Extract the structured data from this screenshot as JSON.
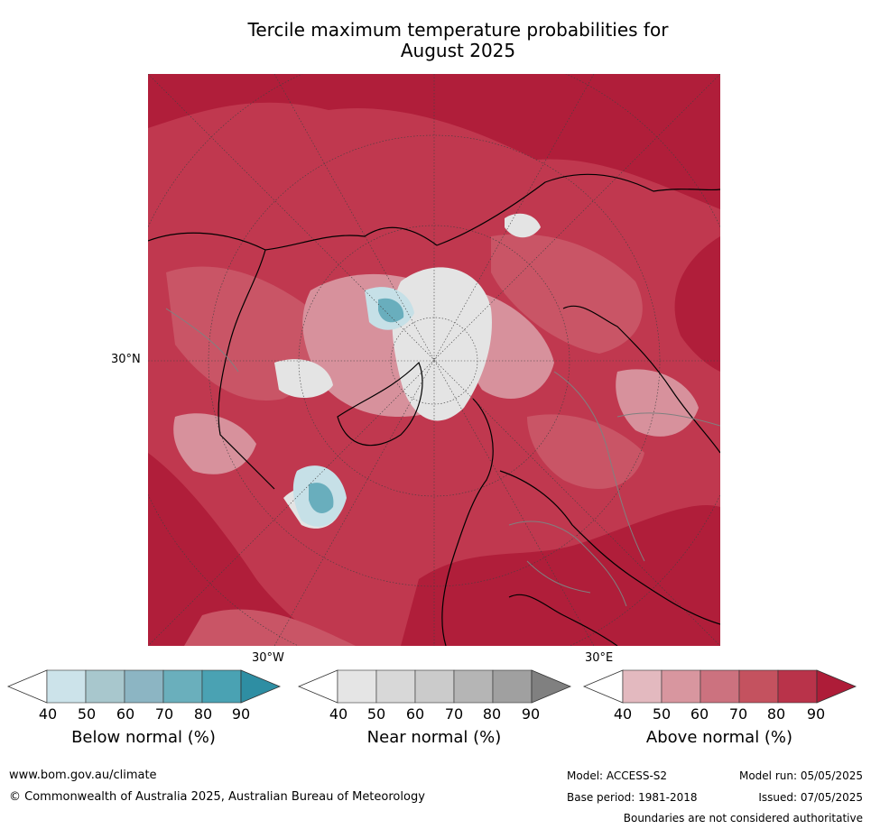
{
  "title_line1": "Tercile maximum temperature probabilities for",
  "title_line2": "August 2025",
  "map": {
    "labels": {
      "lat_30n": "30°N",
      "lon_30w": "30°W",
      "lon_30e": "30°E"
    },
    "colors": {
      "above_base": "#c0384f",
      "above_strong": "#b01e3a",
      "above_mid": "#c95566",
      "above_light": "#d7919c",
      "near_normal": "#e4e4e4",
      "below_light": "#c6e0e7",
      "below_mid": "#69aebd",
      "coastline": "#000000",
      "boundary": "#808080",
      "graticule": "#404040"
    }
  },
  "colorbars": [
    {
      "id": "below",
      "label": "Below normal (%)",
      "ticks": [
        "40",
        "50",
        "60",
        "70",
        "80",
        "90"
      ],
      "colors": [
        "#ffffff",
        "#cce3ea",
        "#a8c7cd",
        "#8cb5c3",
        "#6aafbc",
        "#4aa2b3",
        "#2e8ea3"
      ]
    },
    {
      "id": "near",
      "label": "Near normal (%)",
      "ticks": [
        "40",
        "50",
        "60",
        "70",
        "80",
        "90"
      ],
      "colors": [
        "#ffffff",
        "#e5e5e5",
        "#d8d8d8",
        "#cbcbcb",
        "#b5b5b5",
        "#a0a0a0",
        "#808080"
      ]
    },
    {
      "id": "above",
      "label": "Above normal (%)",
      "ticks": [
        "40",
        "50",
        "60",
        "70",
        "80",
        "90"
      ],
      "colors": [
        "#ffffff",
        "#e3b9bf",
        "#d8969f",
        "#cc727f",
        "#c4525f",
        "#b9334a",
        "#ae1c38"
      ]
    }
  ],
  "footer": {
    "website": "www.bom.gov.au/climate",
    "copyright": "© Commonwealth of Australia 2025, Australian Bureau of Meteorology",
    "model": "Model: ACCESS-S2",
    "base_period": "Base period: 1981-2018",
    "model_run": "Model run: 05/05/2025",
    "issued": "Issued: 07/05/2025",
    "disclaimer": "Boundaries are not considered authoritative"
  }
}
